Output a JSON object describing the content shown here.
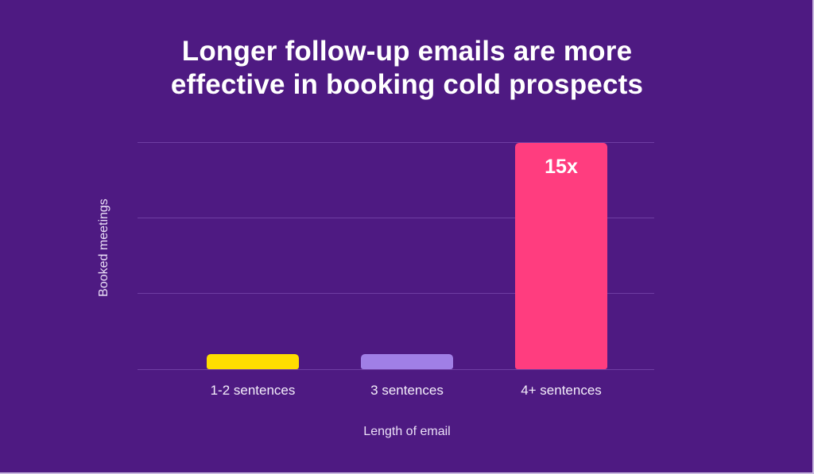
{
  "chart_data": {
    "type": "bar",
    "title": "Longer follow-up emails are more effective in booking cold prospects",
    "title_lines": [
      "Longer follow-up emails are more",
      "effective in booking cold prospects"
    ],
    "xlabel": "Length of email",
    "ylabel": "Booked meetings",
    "categories": [
      "1-2 sentences",
      "3 sentences",
      "4+ sentences"
    ],
    "values": [
      1,
      1,
      15
    ],
    "data_labels": [
      "",
      "",
      "15x"
    ],
    "colors": [
      "#ffdd00",
      "#a07fe6",
      "#ff3d7f"
    ],
    "ylim": [
      0,
      15
    ],
    "grid": true,
    "gridlines": 4,
    "legend": null
  },
  "colors": {
    "background": "#4e1a82",
    "gridline": "#6f3ea3",
    "text": "#ffffff"
  }
}
